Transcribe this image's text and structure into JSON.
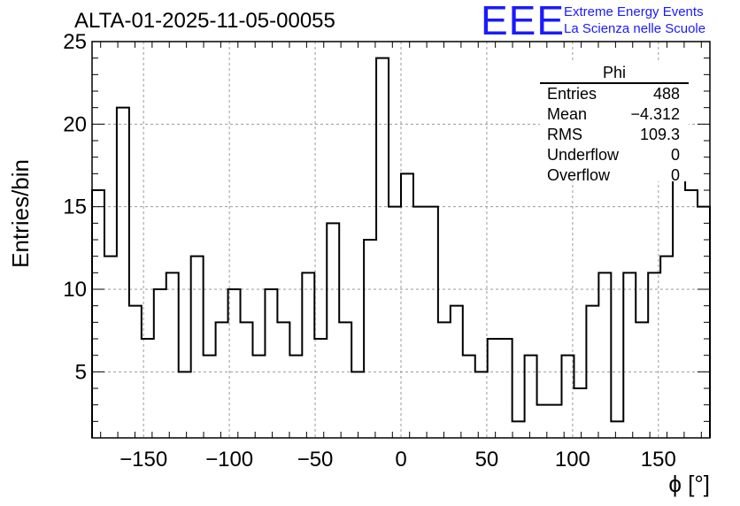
{
  "chart_data": {
    "type": "histogram",
    "title": "ALTA-01-2025-11-05-00055",
    "xlabel": "ϕ [°]",
    "ylabel": "Entries/bin",
    "xlim": [
      -180,
      180
    ],
    "ylim": [
      1,
      25
    ],
    "bin_width": 7.2,
    "grid": true,
    "x_ticks": [
      -150,
      -100,
      -50,
      0,
      50,
      100,
      150
    ],
    "x_tick_labels": [
      "−150",
      "−100",
      "−50",
      "0",
      "50",
      "100",
      "150"
    ],
    "y_ticks": [
      5,
      10,
      15,
      20,
      25
    ],
    "y_tick_labels": [
      "5",
      "10",
      "15",
      "20",
      "25"
    ],
    "values": [
      16,
      12,
      21,
      9,
      7,
      10,
      11,
      5,
      12,
      6,
      8,
      10,
      8,
      6,
      10,
      8,
      6,
      11,
      7,
      14,
      8,
      5,
      13,
      24,
      15,
      17,
      15,
      15,
      8,
      9,
      6,
      5,
      7,
      7,
      2,
      6,
      3,
      3,
      6,
      4,
      9,
      11,
      2,
      11,
      8,
      11,
      12,
      18,
      16,
      15
    ]
  },
  "stats_box": {
    "title": "Phi",
    "rows": [
      {
        "label": "Entries",
        "value": "488"
      },
      {
        "label": "Mean",
        "value": "−4.312"
      },
      {
        "label": "RMS",
        "value": "109.3"
      },
      {
        "label": "Underflow",
        "value": "0"
      },
      {
        "label": "Overflow",
        "value": "0"
      }
    ]
  },
  "logo": {
    "mark": "EEE",
    "line1": "Extreme Energy Events",
    "line2": "La Scienza nelle Scuole",
    "color": "#1a1aff"
  }
}
